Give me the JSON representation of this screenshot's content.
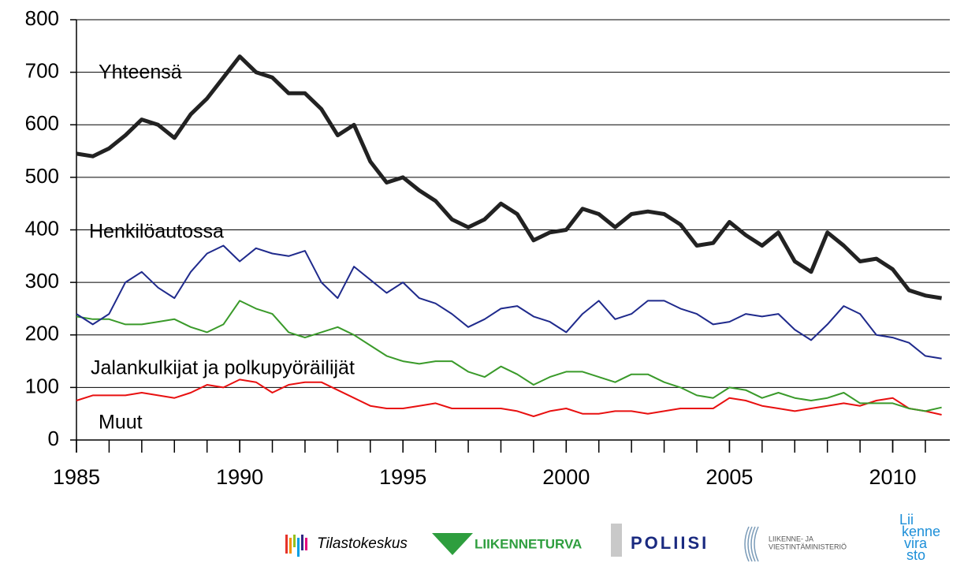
{
  "chart_data": {
    "type": "line",
    "x": [
      1985,
      1985.5,
      1986,
      1986.5,
      1987,
      1987.5,
      1988,
      1988.5,
      1989,
      1989.5,
      1990,
      1990.5,
      1991,
      1991.5,
      1992,
      1992.5,
      1993,
      1993.5,
      1994,
      1994.5,
      1995,
      1995.5,
      1996,
      1996.5,
      1997,
      1997.5,
      1998,
      1998.5,
      1999,
      1999.5,
      2000,
      2000.5,
      2001,
      2001.5,
      2002,
      2002.5,
      2003,
      2003.5,
      2004,
      2004.5,
      2005,
      2005.5,
      2006,
      2006.5,
      2007,
      2007.5,
      2008,
      2008.5,
      2009,
      2009.5,
      2010,
      2010.5,
      2011,
      2011.5
    ],
    "series": [
      {
        "name": "Yhteensä",
        "color": "#222222",
        "width": 5,
        "values": [
          545,
          540,
          555,
          580,
          610,
          600,
          575,
          620,
          650,
          690,
          730,
          700,
          690,
          660,
          660,
          630,
          580,
          600,
          530,
          490,
          500,
          475,
          455,
          420,
          405,
          420,
          450,
          430,
          380,
          395,
          400,
          440,
          430,
          405,
          430,
          435,
          430,
          410,
          370,
          375,
          415,
          390,
          370,
          395,
          340,
          320,
          395,
          370,
          340,
          345,
          325,
          285,
          275,
          270
        ]
      },
      {
        "name": "Henkilöautossa",
        "color": "#1f2a8c",
        "width": 2,
        "values": [
          240,
          220,
          240,
          300,
          320,
          290,
          270,
          320,
          355,
          370,
          340,
          365,
          355,
          350,
          360,
          300,
          270,
          330,
          305,
          280,
          300,
          270,
          260,
          240,
          215,
          230,
          250,
          255,
          235,
          225,
          205,
          240,
          265,
          230,
          240,
          265,
          265,
          250,
          240,
          220,
          225,
          240,
          235,
          240,
          210,
          190,
          220,
          255,
          240,
          200,
          195,
          185,
          160,
          155
        ]
      },
      {
        "name": "Jalankulkijat ja polkupyöräilijät",
        "color": "#3a9a2a",
        "width": 2,
        "values": [
          235,
          230,
          230,
          220,
          220,
          225,
          230,
          215,
          205,
          220,
          265,
          250,
          240,
          205,
          195,
          205,
          215,
          200,
          180,
          160,
          150,
          145,
          150,
          150,
          130,
          120,
          140,
          125,
          105,
          120,
          130,
          130,
          120,
          110,
          125,
          125,
          110,
          100,
          85,
          80,
          100,
          95,
          80,
          90,
          80,
          75,
          80,
          90,
          70,
          70,
          70,
          60,
          55,
          62
        ]
      },
      {
        "name": "Muut",
        "color": "#e81010",
        "width": 2,
        "values": [
          75,
          85,
          85,
          85,
          90,
          85,
          80,
          90,
          105,
          100,
          115,
          110,
          90,
          105,
          110,
          110,
          95,
          80,
          65,
          60,
          60,
          65,
          70,
          60,
          60,
          60,
          60,
          55,
          45,
          55,
          60,
          50,
          50,
          55,
          55,
          50,
          55,
          60,
          60,
          60,
          80,
          75,
          65,
          60,
          55,
          60,
          65,
          70,
          65,
          75,
          80,
          60,
          55,
          48
        ]
      }
    ],
    "xlim": [
      1985,
      2011.75
    ],
    "ylim": [
      0,
      800
    ],
    "xticks": [
      1985,
      1990,
      1995,
      2000,
      2005,
      2010
    ],
    "xminorticks": [
      1985,
      1986,
      1987,
      1988,
      1989,
      1990,
      1991,
      1992,
      1993,
      1994,
      1995,
      1996,
      1997,
      1998,
      1999,
      2000,
      2001,
      2002,
      2003,
      2004,
      2005,
      2006,
      2007,
      2008,
      2009,
      2010,
      2011
    ],
    "yticks": [
      0,
      100,
      200,
      300,
      400,
      500,
      600,
      700,
      800
    ],
    "grid": true,
    "logos": [
      "Tilastokeskus",
      "LIIKENNETURVA",
      "POLIISI",
      "LIIKENNE- JA",
      "VIESTINTÄMINISTERIÖ",
      "Lii",
      "kenne",
      "vira",
      "sto"
    ]
  }
}
